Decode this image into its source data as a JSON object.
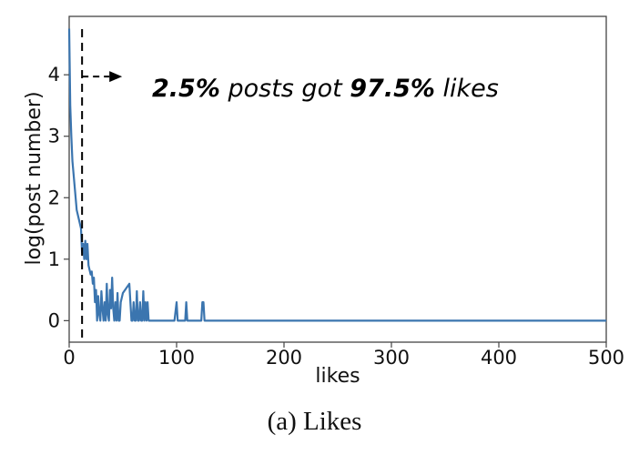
{
  "chart_data": {
    "type": "line",
    "title": "",
    "xlabel": "likes",
    "ylabel": "log(post number)",
    "xlim": [
      0,
      500
    ],
    "ylim": [
      -0.35,
      4.95
    ],
    "xticks": [
      0,
      100,
      200,
      300,
      400,
      500
    ],
    "yticks": [
      0,
      1,
      2,
      3,
      4
    ],
    "grid": false,
    "legend": "none",
    "color": "#3b75af",
    "series": [
      {
        "x": [
          0,
          1,
          2,
          3,
          5,
          7,
          9,
          11,
          12,
          13,
          14,
          15,
          16,
          17,
          18,
          20,
          21,
          22,
          23,
          24,
          25,
          26,
          27,
          28,
          29,
          30,
          31,
          32,
          33,
          34,
          35,
          36,
          37,
          38,
          39,
          40,
          41,
          42,
          43,
          44,
          45,
          46,
          47,
          48,
          50,
          52,
          54,
          56,
          58,
          59,
          60,
          61,
          62,
          63,
          64,
          65,
          66,
          67,
          68,
          69,
          70,
          71,
          72,
          73,
          74,
          75,
          98,
          100,
          101,
          102,
          108,
          109,
          110,
          111,
          123,
          124,
          125,
          126,
          127,
          500
        ],
        "y": [
          4.75,
          3.5,
          3.0,
          2.6,
          2.2,
          1.8,
          1.65,
          1.5,
          1.1,
          1.25,
          1.0,
          1.3,
          1.0,
          1.25,
          0.9,
          0.75,
          0.8,
          0.6,
          0.7,
          0.3,
          0.5,
          0.0,
          0.4,
          0.1,
          0.0,
          0.48,
          0.2,
          0.0,
          0.3,
          0.0,
          0.6,
          0.1,
          0.0,
          0.5,
          0.2,
          0.7,
          0.2,
          0.0,
          0.3,
          0.0,
          0.45,
          0.0,
          0.0,
          0.3,
          0.45,
          0.5,
          0.55,
          0.6,
          0.0,
          0.0,
          0.3,
          0.0,
          0.0,
          0.48,
          0.0,
          0.0,
          0.3,
          0.0,
          0.0,
          0.48,
          0.0,
          0.3,
          0.0,
          0.3,
          0.0,
          0.0,
          0.0,
          0.3,
          0.0,
          0.0,
          0.0,
          0.3,
          0.0,
          0.0,
          0.0,
          0.3,
          0.3,
          0.0,
          0.0,
          0.0
        ]
      }
    ],
    "threshold_x": 12,
    "annotation": {
      "part1": "2.5%",
      "part2": " posts got ",
      "part3": "97.5%",
      "part4": " likes"
    }
  },
  "caption": "(a) Likes"
}
